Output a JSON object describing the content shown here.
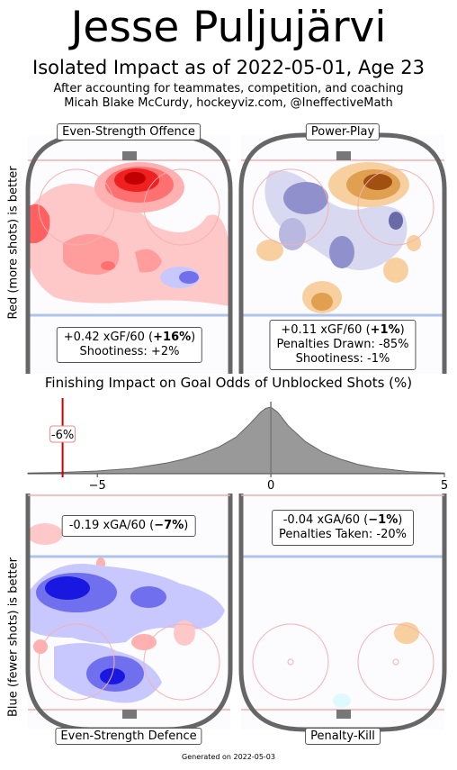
{
  "header": {
    "title": "Jesse Puljujärvi",
    "subtitle": "Isolated Impact as of 2022-05-01, Age 23",
    "note_line1": "After accounting for teammates, competition, and coaching",
    "note_line2": "Micah Blake McCurdy, hockeyviz.com, @IneffectiveMath"
  },
  "y_labels": {
    "top": "Red (more shots) is better",
    "bottom": "Blue (fewer shots) is better"
  },
  "panels": {
    "es_offence": {
      "label": "Even-Strength Offence",
      "stat_prefix": "+0.42 xGF/60 (",
      "stat_bold": "+16%",
      "stat_suffix": ")",
      "line2": "Shootiness: +2%"
    },
    "power_play": {
      "label": "Power-Play",
      "stat_prefix": "+0.11 xGF/60 (",
      "stat_bold": "+1%",
      "stat_suffix": ")",
      "line2": "Penalties Drawn: -85%",
      "line3": "Shootiness: -1%"
    },
    "es_defence": {
      "label": "Even-Strength Defence",
      "stat_prefix": "-0.19 xGA/60 (",
      "stat_bold": "−7%",
      "stat_suffix": ")"
    },
    "penalty_kill": {
      "label": "Penalty-Kill",
      "stat_prefix": "-0.04 xGA/60 (",
      "stat_bold": "−1%",
      "stat_suffix": ")",
      "line2": "Penalties Taken: -20%"
    }
  },
  "colors": {
    "offence_red": "#e00000",
    "defence_blue": "#0000e0",
    "pp_orange": "#c87820",
    "pp_purple": "#4a3a8c",
    "rink_border": "#666666",
    "blue_line": "#b0c4e8",
    "goal_line": "#f0b0b0",
    "marker_red": "#cc0000"
  },
  "chart_data": {
    "type": "area",
    "title": "Finishing Impact on Goal Odds of Unblocked Shots (%)",
    "x_ticks": [
      "−5",
      "0",
      "5"
    ],
    "xlim": [
      -7,
      5
    ],
    "player_value": -6,
    "player_label": "-6%",
    "density": {
      "x": [
        -7,
        -6,
        -5,
        -4,
        -3,
        -2.5,
        -2,
        -1.5,
        -1,
        -0.6,
        -0.3,
        -0.15,
        0,
        0.2,
        0.5,
        1,
        1.5,
        2,
        2.5,
        3,
        4,
        5
      ],
      "y": [
        0.01,
        0.02,
        0.04,
        0.08,
        0.16,
        0.22,
        0.3,
        0.4,
        0.55,
        0.75,
        0.92,
        0.98,
        1.0,
        0.92,
        0.72,
        0.48,
        0.32,
        0.22,
        0.14,
        0.09,
        0.03,
        0.01
      ]
    }
  },
  "footer": "Generated on 2022-05-03"
}
